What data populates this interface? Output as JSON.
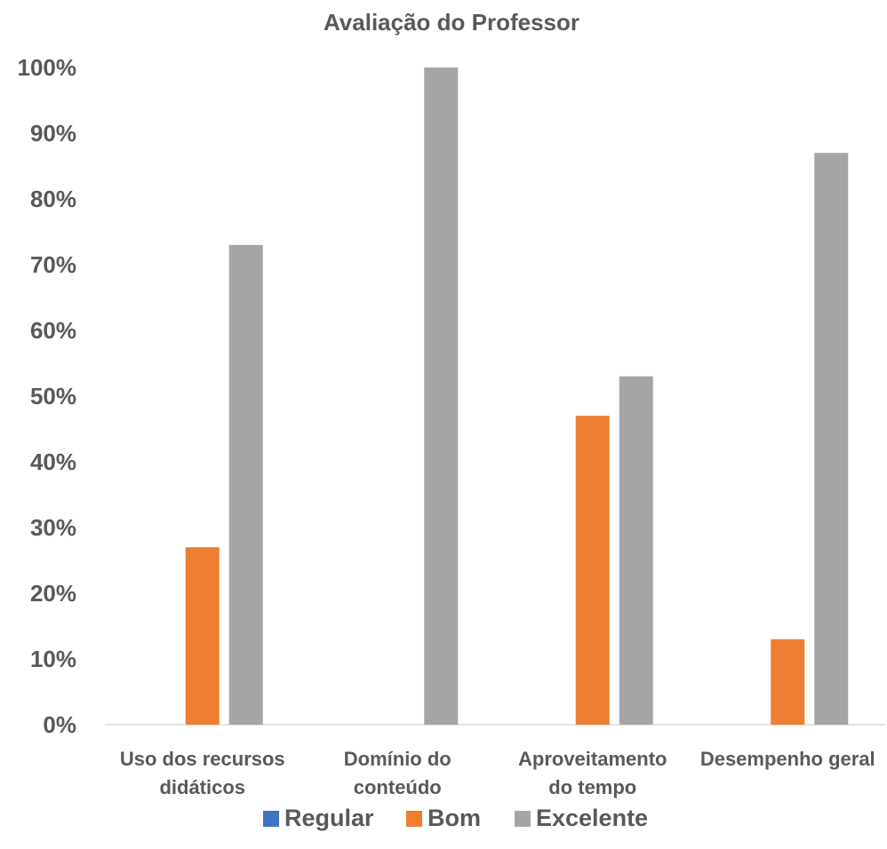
{
  "chart_data": {
    "type": "bar",
    "title": "Avaliação do Professor",
    "categories": [
      [
        "Uso dos recursos",
        "didáticos"
      ],
      [
        "Domínio do",
        "conteúdo"
      ],
      [
        "Aproveitamento",
        "do tempo"
      ],
      [
        "Desempenho geral"
      ]
    ],
    "series": [
      {
        "name": "Regular",
        "color": "#4472C4",
        "values": [
          0,
          0,
          0,
          0
        ]
      },
      {
        "name": "Bom",
        "color": "#ED7D31",
        "values": [
          27,
          0,
          47,
          13
        ]
      },
      {
        "name": "Excelente",
        "color": "#A5A5A5",
        "values": [
          73,
          100,
          53,
          87
        ]
      }
    ],
    "ylim": [
      0,
      100
    ],
    "yticks": [
      "0%",
      "10%",
      "20%",
      "30%",
      "40%",
      "50%",
      "60%",
      "70%",
      "80%",
      "90%",
      "100%"
    ],
    "grid": false,
    "legend_position": "bottom",
    "axis_color": "#D9D9D9"
  }
}
